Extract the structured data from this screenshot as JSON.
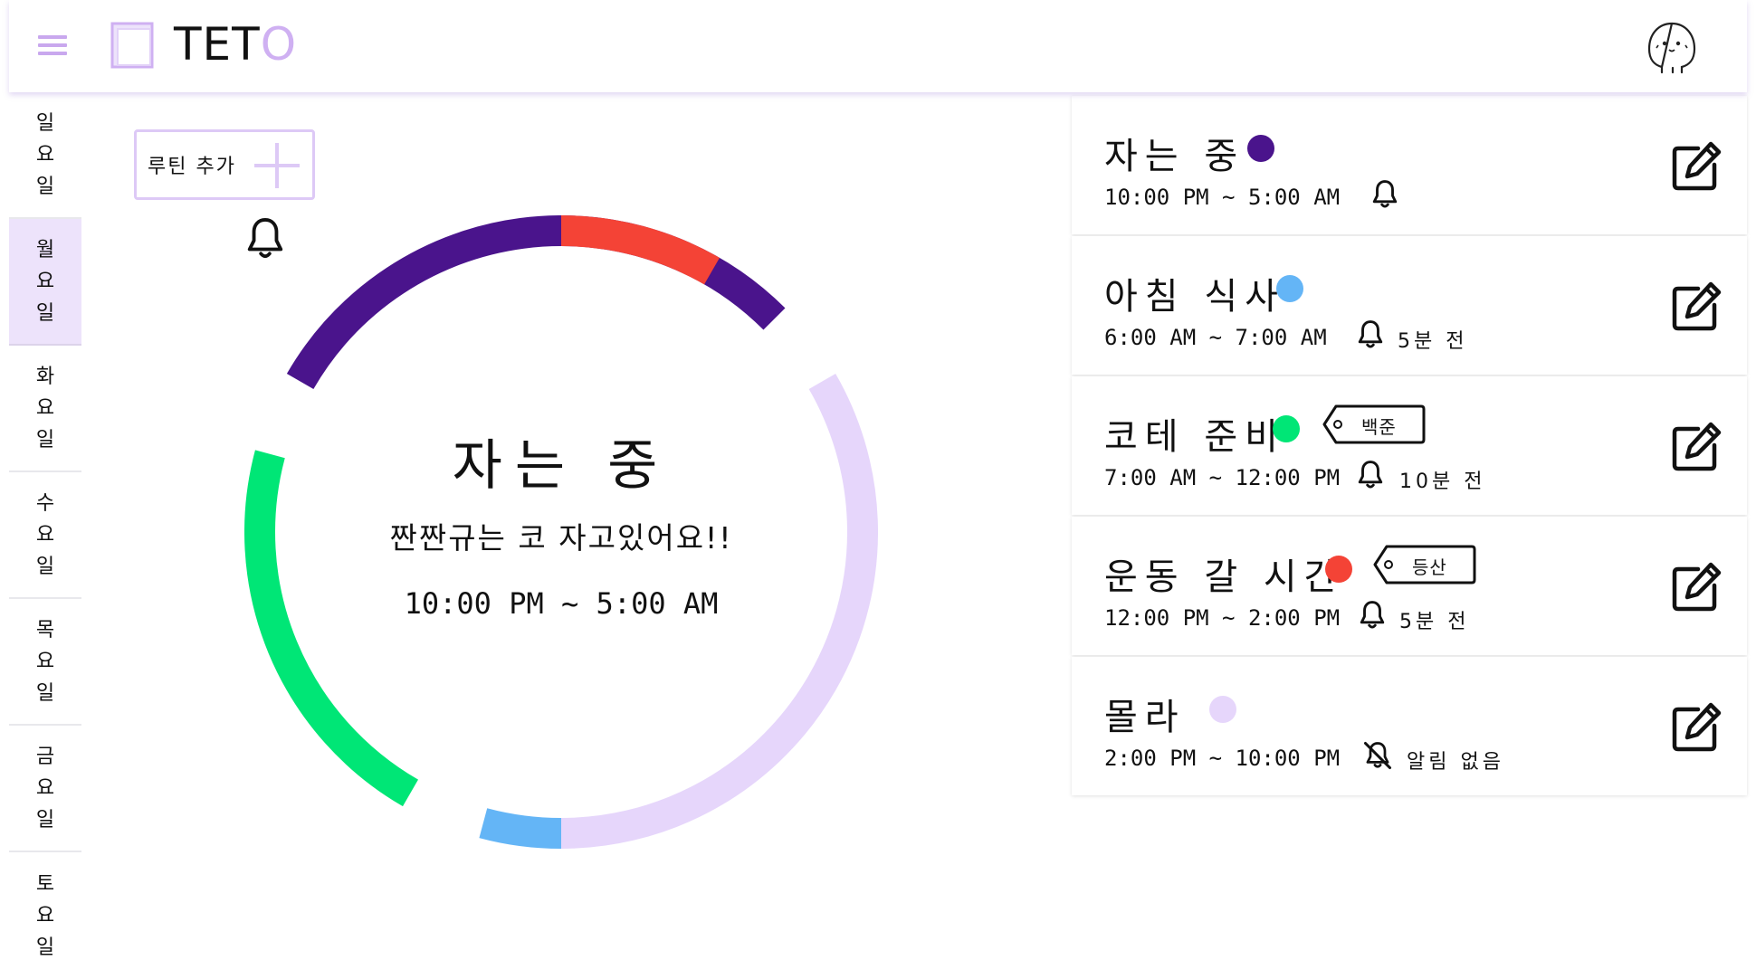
{
  "app": {
    "logo_main": "TET",
    "logo_accent": "O"
  },
  "sidebar": {
    "days": [
      {
        "c1": "일",
        "c2": "요",
        "c3": "일"
      },
      {
        "c1": "월",
        "c2": "요",
        "c3": "일"
      },
      {
        "c1": "화",
        "c2": "요",
        "c3": "일"
      },
      {
        "c1": "수",
        "c2": "요",
        "c3": "일"
      },
      {
        "c1": "목",
        "c2": "요",
        "c3": "일"
      },
      {
        "c1": "금",
        "c2": "요",
        "c3": "일"
      },
      {
        "c1": "토",
        "c2": "요",
        "c3": "일"
      }
    ],
    "active_index": 1
  },
  "toolbar": {
    "add_routine_label": "루틴 추가"
  },
  "current": {
    "title": "자는 중",
    "subtitle": "짠짠규는 코 자고있어요!!",
    "time": "10:00 PM ~ 5:00 AM"
  },
  "clock": {
    "segments": [
      {
        "start_hour": 22,
        "end_hour": 5,
        "color": "#4a148c"
      },
      {
        "start_hour": 6,
        "end_hour": 7,
        "color": "#64b5f6"
      },
      {
        "start_hour": 7,
        "end_hour": 12,
        "color": "#00e676"
      },
      {
        "start_hour": 12,
        "end_hour": 14,
        "color": "#f44336"
      },
      {
        "start_hour": 14,
        "end_hour": 22,
        "color": "#e6d6fb"
      }
    ]
  },
  "routines": [
    {
      "title": "자는 중",
      "color": "#4a148c",
      "tag": "",
      "time": "10:00 PM ~ 5:00 AM",
      "alarm": "",
      "muted": false
    },
    {
      "title": "아침 식사",
      "color": "#64b5f6",
      "tag": "",
      "time": "6:00 AM ~ 7:00 AM",
      "alarm": "5분 전",
      "muted": false
    },
    {
      "title": "코테 준비",
      "color": "#00e676",
      "tag": "백준",
      "time": "7:00 AM ~ 12:00 PM",
      "alarm": "10분 전",
      "muted": false
    },
    {
      "title": "운동 갈 시간",
      "color": "#f44336",
      "tag": "등산",
      "time": "12:00 PM ~ 2:00 PM",
      "alarm": "5분 전",
      "muted": false
    },
    {
      "title": "몰라",
      "color": "#e6d6fb",
      "tag": "",
      "time": "2:00 PM ~ 10:00 PM",
      "alarm": "알림 없음",
      "muted": true
    }
  ],
  "colors": {
    "brand": "#cfb0f2",
    "active_day_bg": "#ede3fb"
  },
  "icons": {
    "menu": "hamburger-icon",
    "logo": "logo-icon",
    "avatar": "avatar-icon",
    "add": "plus-icon",
    "alarm": "bell-icon",
    "alarm_off": "bell-off-icon",
    "edit": "edit-icon",
    "tag": "tag-icon"
  }
}
